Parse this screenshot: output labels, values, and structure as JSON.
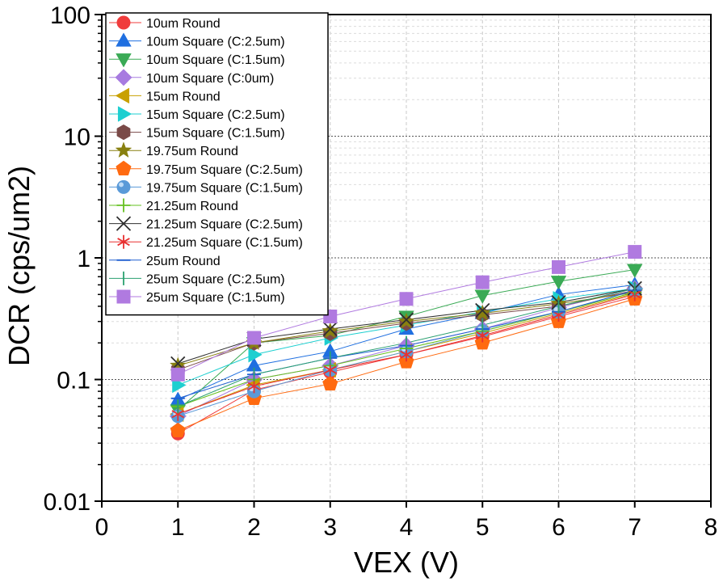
{
  "chart_data": {
    "type": "line",
    "title": "",
    "xlabel": "VEX (V)",
    "ylabel": "DCR (cps/um2)",
    "xlim": [
      0,
      8
    ],
    "ylim": [
      0.01,
      100
    ],
    "yscale": "log",
    "grid": true,
    "legend_position": "top-left",
    "x_ticks": [
      "0",
      "1",
      "2",
      "3",
      "4",
      "5",
      "6",
      "7",
      "8"
    ],
    "y_ticks": [
      "0.01",
      "0.1",
      "1",
      "10",
      "100"
    ],
    "x": [
      1,
      2,
      3,
      4,
      5,
      6,
      7
    ],
    "series": [
      {
        "name": "10um Round",
        "marker": "circle",
        "color": "#f03c3c",
        "values": [
          0.036,
          0.082,
          0.115,
          0.16,
          0.225,
          0.33,
          0.48
        ]
      },
      {
        "name": "10um Square (C:2.5um)",
        "marker": "triangle-up",
        "color": "#1f6fe0",
        "values": [
          0.068,
          0.13,
          0.17,
          0.26,
          0.35,
          0.5,
          0.6
        ]
      },
      {
        "name": "10um Square (C:1.5um)",
        "marker": "triangle-down",
        "color": "#3aaa55",
        "values": [
          0.056,
          0.2,
          0.23,
          0.33,
          0.49,
          0.64,
          0.8
        ]
      },
      {
        "name": "10um Square (C:0um)",
        "marker": "diamond",
        "color": "#a77be0",
        "values": [
          0.05,
          0.1,
          0.13,
          0.19,
          0.26,
          0.39,
          0.56
        ]
      },
      {
        "name": "15um Round",
        "marker": "triangle-left",
        "color": "#c8a000",
        "values": [
          0.052,
          0.09,
          0.12,
          0.17,
          0.24,
          0.35,
          0.51
        ]
      },
      {
        "name": "15um Square (C:2.5um)",
        "marker": "triangle-right",
        "color": "#1ecfd0",
        "values": [
          0.09,
          0.16,
          0.22,
          0.28,
          0.36,
          0.46,
          0.56
        ]
      },
      {
        "name": "15um Square (C:1.5um)",
        "marker": "hexagon",
        "color": "#7a4a48",
        "values": [
          0.12,
          0.2,
          0.24,
          0.29,
          0.34,
          0.4,
          0.54
        ]
      },
      {
        "name": "19.75um Round",
        "marker": "star",
        "color": "#888010",
        "values": [
          0.13,
          0.2,
          0.25,
          0.3,
          0.35,
          0.42,
          0.52
        ]
      },
      {
        "name": "19.75um Square (C:2.5um)",
        "marker": "pentagon",
        "color": "#ff6a10",
        "values": [
          0.038,
          0.07,
          0.092,
          0.14,
          0.2,
          0.3,
          0.46
        ]
      },
      {
        "name": "19.75um Square (C:1.5um)",
        "marker": "sphere",
        "color": "#5a9ad8",
        "values": [
          0.05,
          0.08,
          0.12,
          0.17,
          0.25,
          0.36,
          0.54
        ]
      },
      {
        "name": "21.25um Round",
        "marker": "plus",
        "color": "#66c020",
        "values": [
          0.06,
          0.1,
          0.13,
          0.18,
          0.25,
          0.36,
          0.52
        ]
      },
      {
        "name": "21.25um Square (C:2.5um)",
        "marker": "cross",
        "color": "#303030",
        "values": [
          0.135,
          0.215,
          0.26,
          0.31,
          0.37,
          0.43,
          0.56
        ]
      },
      {
        "name": "21.25um Square (C:1.5um)",
        "marker": "asterisk",
        "color": "#e83030",
        "values": [
          0.052,
          0.088,
          0.12,
          0.16,
          0.23,
          0.34,
          0.5
        ]
      },
      {
        "name": "25um Round",
        "marker": "hline",
        "color": "#1f5fd0",
        "values": [
          0.07,
          0.11,
          0.15,
          0.19,
          0.26,
          0.36,
          0.54
        ]
      },
      {
        "name": "25um Square (C:2.5um)",
        "marker": "vline",
        "color": "#2aa070",
        "values": [
          0.06,
          0.11,
          0.15,
          0.2,
          0.28,
          0.4,
          0.56
        ]
      },
      {
        "name": "25um Square (C:1.5um)",
        "marker": "square",
        "color": "#b07ae0",
        "values": [
          0.11,
          0.22,
          0.33,
          0.46,
          0.63,
          0.84,
          1.12
        ]
      }
    ]
  }
}
